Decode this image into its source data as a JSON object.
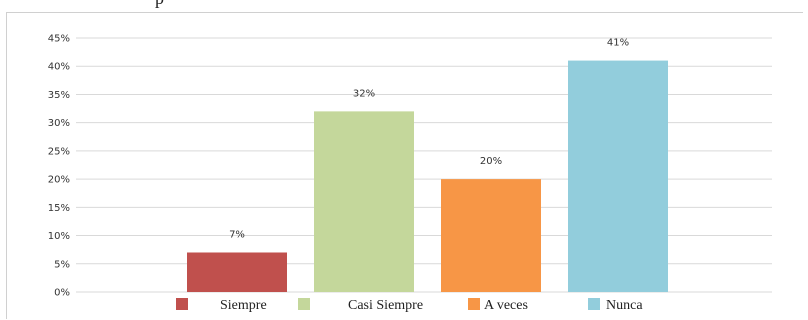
{
  "chart_data": {
    "type": "bar",
    "categories": [
      "Siempre",
      "Casi Siempre",
      "A veces",
      "Nunca"
    ],
    "values": [
      7,
      32,
      20,
      41
    ],
    "data_labels": [
      "7%",
      "32%",
      "20%",
      "41%"
    ],
    "colors": [
      "#c0504d",
      "#c4d79b",
      "#f79646",
      "#92cddc"
    ],
    "y_ticks": [
      {
        "value": 0,
        "label": "0%"
      },
      {
        "value": 5,
        "label": "5%"
      },
      {
        "value": 10,
        "label": "10%"
      },
      {
        "value": 15,
        "label": "15%"
      },
      {
        "value": 20,
        "label": "20%"
      },
      {
        "value": 25,
        "label": "25%"
      },
      {
        "value": 30,
        "label": "30%"
      },
      {
        "value": 35,
        "label": "35%"
      },
      {
        "value": 40,
        "label": "40%"
      },
      {
        "value": 45,
        "label": "45%"
      }
    ],
    "ylim": [
      0,
      45
    ],
    "grid": true,
    "legend_position": "bottom",
    "title": "",
    "xlabel": "",
    "ylabel": ""
  },
  "legend": [
    {
      "label": "Siempre",
      "color": "#c0504d"
    },
    {
      "label": "Casi Siempre",
      "color": "#c4d79b"
    },
    {
      "label": "A veces",
      "color": "#f79646"
    },
    {
      "label": "Nunca",
      "color": "#92cddc"
    }
  ]
}
